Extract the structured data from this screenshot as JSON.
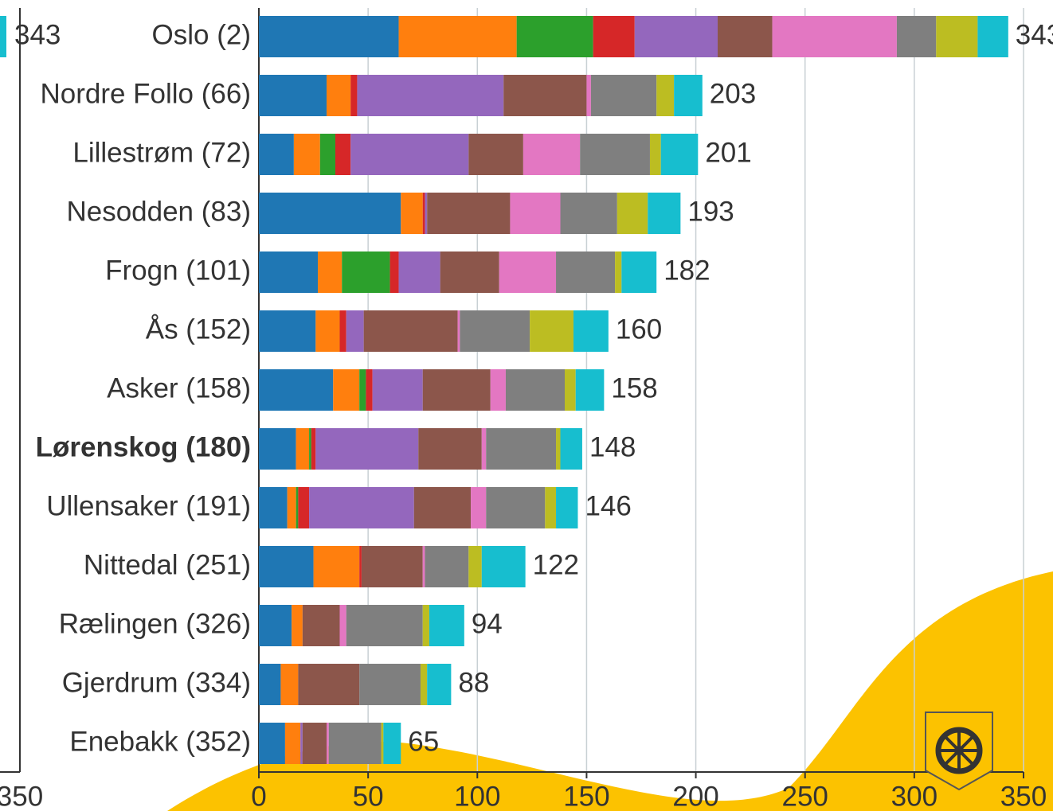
{
  "chart_data": {
    "type": "stacked-bar-horizontal",
    "categories": [
      "Oslo (2)",
      "Nordre Follo (66)",
      "Lillestrøm (72)",
      "Nesodden (83)",
      "Frogn (101)",
      "Ås (152)",
      "Asker (158)",
      "Lørenskog (180)",
      "Ullensaker (191)",
      "Nittedal (251)",
      "Rælingen (326)",
      "Gjerdrum (334)",
      "Enebakk (352)"
    ],
    "bold_category": 7,
    "series": [
      {
        "color": "#1f77b4",
        "values": [
          64,
          31,
          16,
          65,
          27,
          26,
          34,
          17,
          13,
          25,
          15,
          10,
          12
        ]
      },
      {
        "color": "#ff7f0e",
        "values": [
          54,
          11,
          12,
          10,
          11,
          11,
          12,
          6,
          4,
          21,
          5,
          8,
          7
        ]
      },
      {
        "color": "#2ca02c",
        "values": [
          35,
          0,
          7,
          0,
          22,
          0,
          3,
          1,
          1,
          0,
          0,
          0,
          0
        ]
      },
      {
        "color": "#d62728",
        "values": [
          19,
          3,
          7,
          1,
          4,
          3,
          3,
          2,
          5,
          1,
          0,
          0,
          0
        ]
      },
      {
        "color": "#9467bd",
        "values": [
          38,
          67,
          54,
          1,
          19,
          8,
          23,
          47,
          48,
          0,
          0,
          0,
          1
        ]
      },
      {
        "color": "#8c564b",
        "values": [
          25,
          38,
          25,
          38,
          27,
          43,
          31,
          29,
          26,
          28,
          17,
          28,
          11
        ]
      },
      {
        "color": "#e377c2",
        "values": [
          57,
          2,
          26,
          23,
          26,
          1,
          7,
          2,
          7,
          1,
          3,
          0,
          1
        ]
      },
      {
        "color": "#7f7f7f",
        "values": [
          18,
          30,
          32,
          26,
          27,
          32,
          27,
          32,
          27,
          20,
          35,
          28,
          24
        ]
      },
      {
        "color": "#bcbd22",
        "values": [
          19,
          8,
          5,
          14,
          3,
          20,
          5,
          2,
          5,
          6,
          3,
          3,
          1
        ]
      },
      {
        "color": "#17becf",
        "values": [
          14,
          13,
          17,
          15,
          16,
          16,
          13,
          10,
          10,
          20,
          16,
          11,
          8
        ]
      }
    ],
    "totals": [
      343,
      203,
      201,
      193,
      182,
      160,
      158,
      148,
      146,
      122,
      94,
      88,
      65
    ],
    "xlim": [
      0,
      350
    ],
    "xticks": [
      0,
      50,
      100,
      150,
      200,
      250,
      300,
      350
    ],
    "grid": true
  },
  "fragment": {
    "value_label": "343",
    "tick": "350"
  }
}
